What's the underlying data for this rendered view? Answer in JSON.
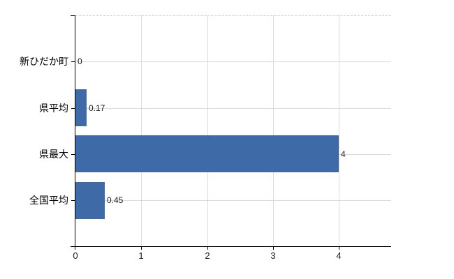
{
  "chart_data": {
    "type": "bar",
    "orientation": "horizontal",
    "title": "",
    "xlabel": "",
    "ylabel": "",
    "categories": [
      "新ひだか町",
      "県平均",
      "県最大",
      "全国平均"
    ],
    "values": [
      0,
      0.17,
      4,
      0.45
    ],
    "value_labels": [
      "0",
      "0.17",
      "4",
      "0.45"
    ],
    "x_ticks": [
      0,
      1,
      2,
      3,
      4
    ],
    "x_tick_labels": [
      "0",
      "1",
      "2",
      "3",
      "4"
    ],
    "xlim": [
      0,
      4.8
    ],
    "grid": true,
    "legend": "none",
    "colors": {
      "bar": "#3e6ba8",
      "axis": "#000000",
      "gridline": "#dcdcdc",
      "top_border": "#cfcfcf",
      "text": "#1a1a1a"
    }
  }
}
